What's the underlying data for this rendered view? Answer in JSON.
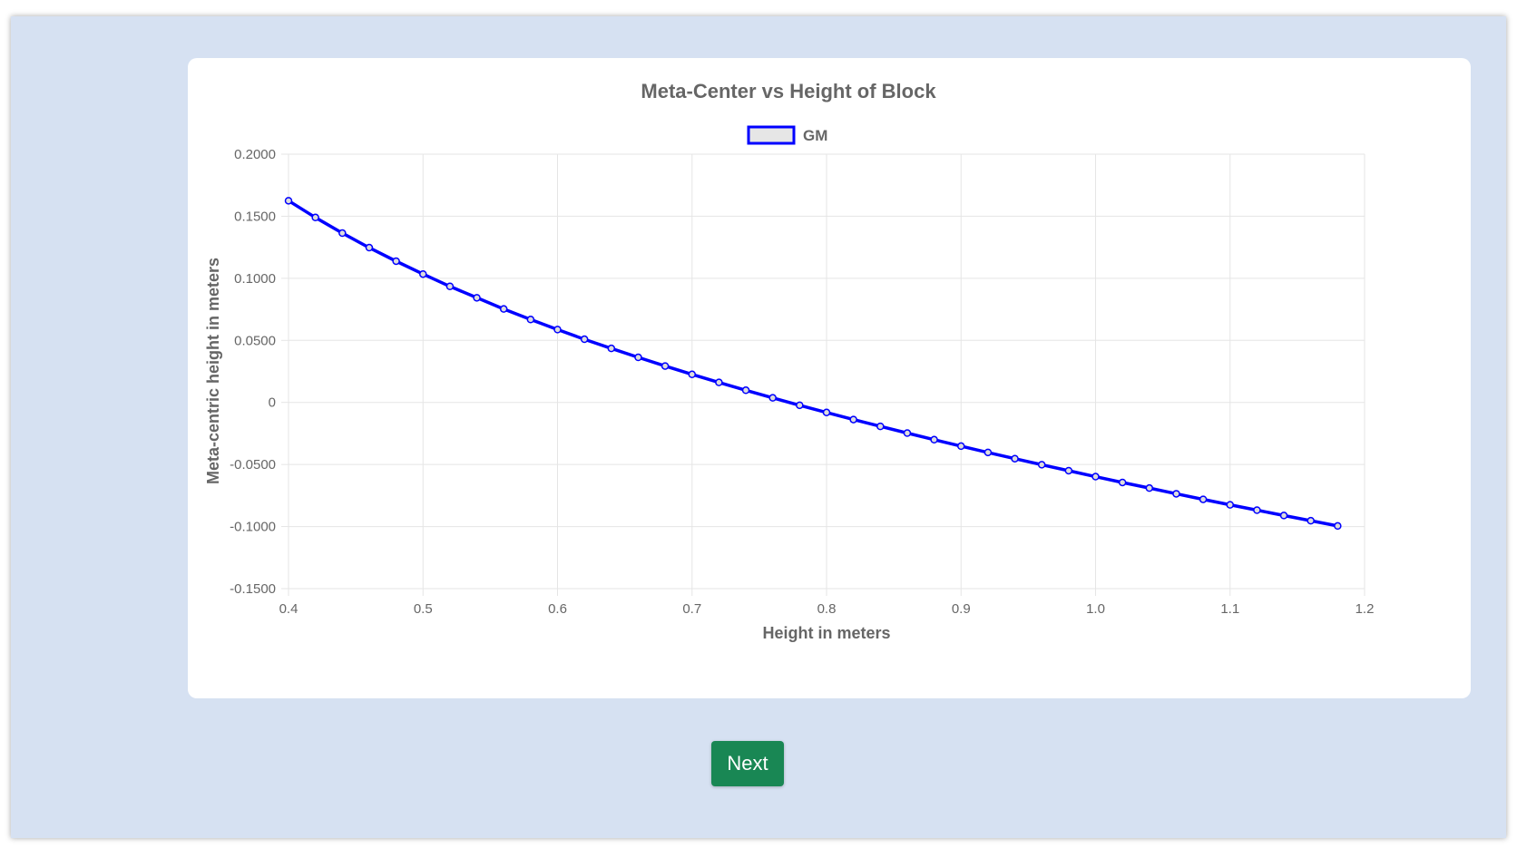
{
  "next_button": {
    "label": "Next"
  },
  "colors": {
    "series": "#0000ff",
    "point_fill": "#dcdcdc",
    "button": "#198754",
    "background": "#d6e1f2"
  },
  "chart_data": {
    "type": "line",
    "title": "Meta-Center vs Height of Block",
    "xlabel": "Height in meters",
    "ylabel": "Meta-centric height in meters",
    "xlim": [
      0.4,
      1.2
    ],
    "ylim": [
      -0.15,
      0.2
    ],
    "x_ticks": [
      "0.4",
      "0.5",
      "0.6",
      "0.7",
      "0.8",
      "0.9",
      "1.0",
      "1.1",
      "1.2"
    ],
    "y_ticks": [
      "0.2000",
      "0.1500",
      "0.1000",
      "0.0500",
      "0",
      "-0.0500",
      "-0.1000",
      "-0.1500"
    ],
    "grid": true,
    "legend_position": "top-center",
    "series": [
      {
        "name": "GM",
        "x": [
          0.4,
          0.42,
          0.44,
          0.46,
          0.48,
          0.5,
          0.52,
          0.54,
          0.56,
          0.58,
          0.6,
          0.62,
          0.64,
          0.66,
          0.68,
          0.7,
          0.72,
          0.74,
          0.76,
          0.78,
          0.8,
          0.82,
          0.84,
          0.86,
          0.88,
          0.9,
          0.92,
          0.94,
          0.96,
          0.98,
          1.0,
          1.02,
          1.04,
          1.06,
          1.08,
          1.1,
          1.12,
          1.14,
          1.16,
          1.18
        ],
        "values": [
          0.1625,
          0.149,
          0.1364,
          0.1247,
          0.1138,
          0.1034,
          0.0935,
          0.0843,
          0.0753,
          0.0668,
          0.0587,
          0.0509,
          0.0435,
          0.0363,
          0.0293,
          0.0226,
          0.0161,
          0.0098,
          0.0037,
          -0.0023,
          -0.0081,
          -0.0138,
          -0.0193,
          -0.0247,
          -0.03,
          -0.0352,
          -0.0403,
          -0.0453,
          -0.0502,
          -0.055,
          -0.0598,
          -0.0645,
          -0.069,
          -0.0736,
          -0.0781,
          -0.0825,
          -0.0868,
          -0.0911,
          -0.0953,
          -0.0995
        ]
      }
    ]
  }
}
